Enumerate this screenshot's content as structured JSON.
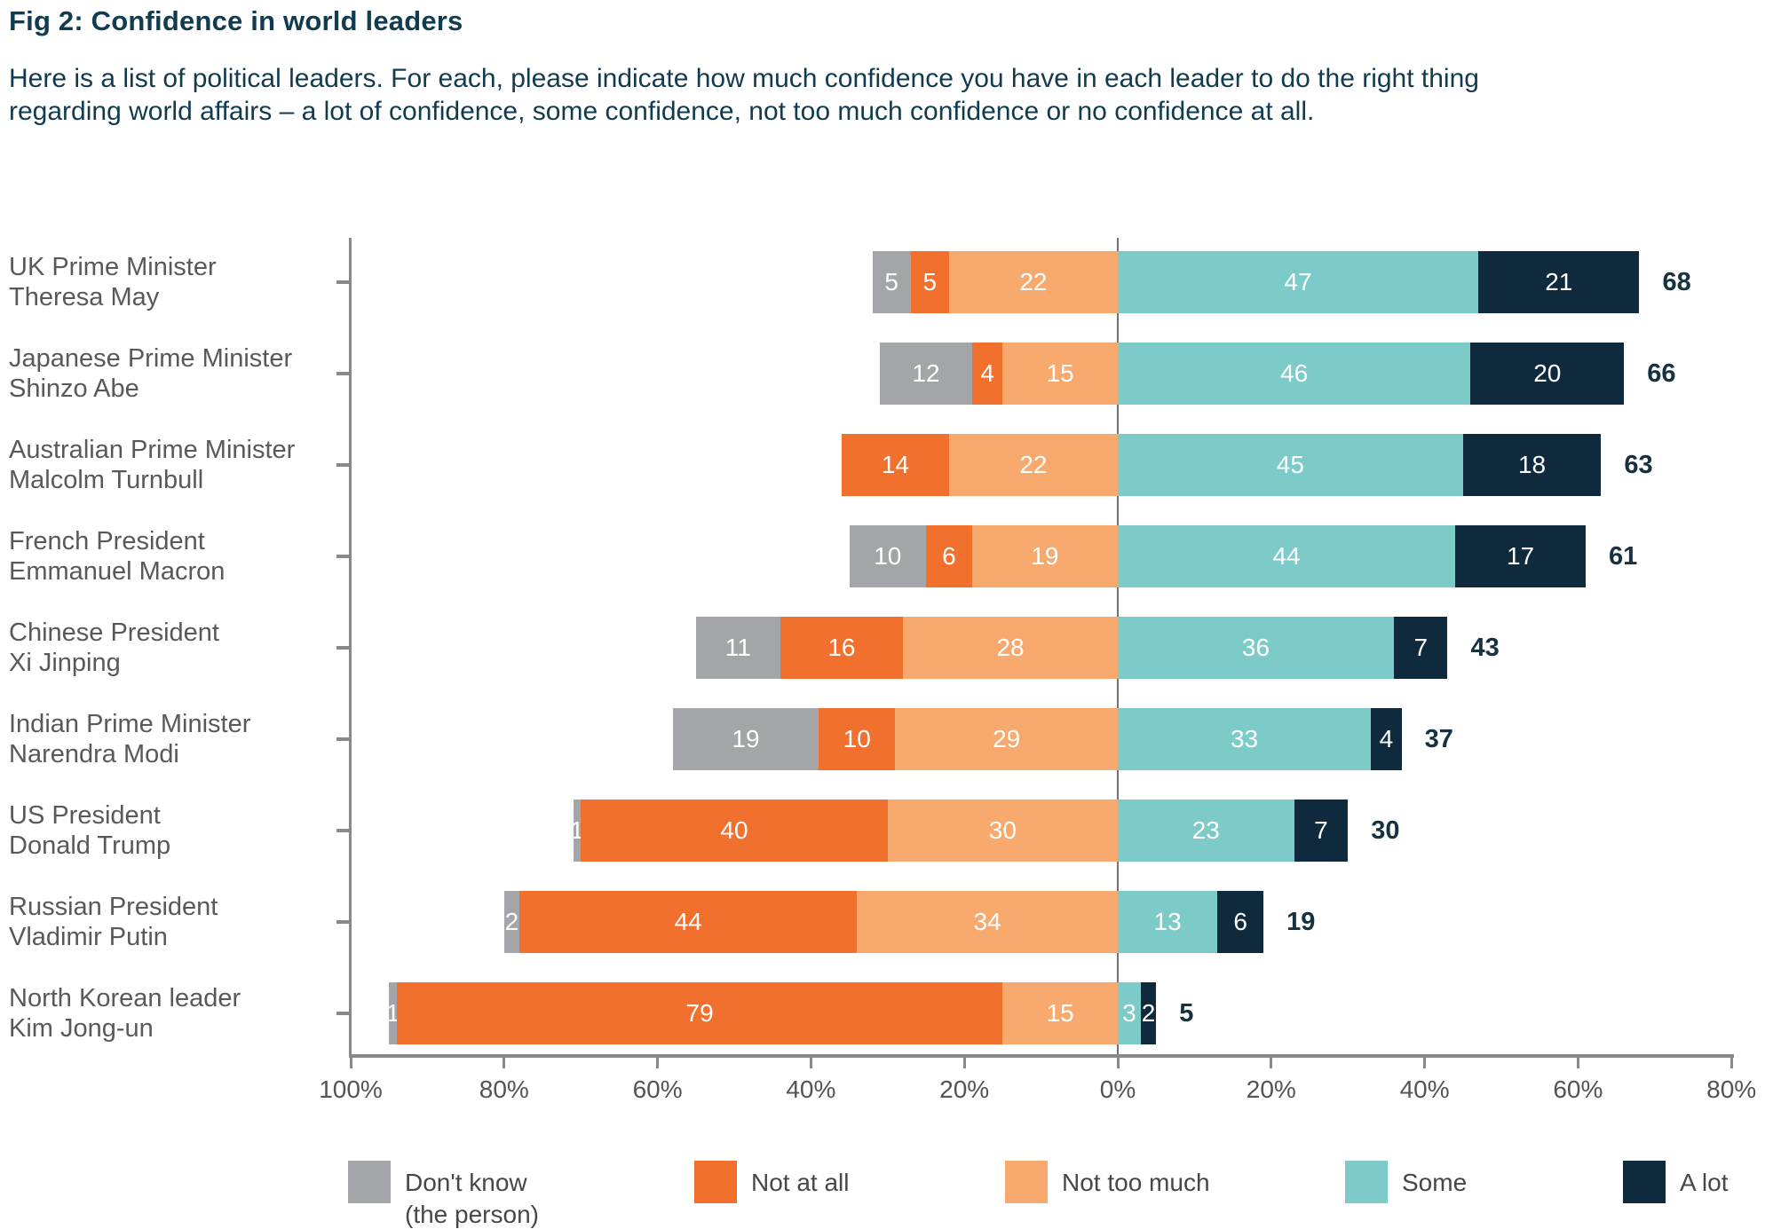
{
  "title": "Fig 2: Confidence in world leaders",
  "subtitle": "Here is a list of political leaders. For each, please indicate how much confidence you have in each leader to do the right thing regarding world affairs – a lot of confidence, some confidence, not too much confidence or no confidence at all.",
  "colors": {
    "dont_know_gray": "#A3A5A8",
    "not_at_all_orange": "#F1702E",
    "not_too_much_light_orange": "#F8A96D",
    "some_teal": "#7DCBC8",
    "a_lot_navy": "#0E2A3C",
    "title_text": "#113B4E",
    "category_text": "#58595B",
    "axis_gray": "#87898C",
    "zero_line_gray": "#6F7173",
    "tick_label_gray": "#525456",
    "total_text": "#16313F",
    "bar_value_text": "#FFFFFF"
  },
  "chart_data": {
    "type": "bar",
    "orientation": "horizontal",
    "diverging": true,
    "title": "Fig 2: Confidence in world leaders",
    "xlabel": "",
    "ylabel": "",
    "xlim": [
      -100,
      80
    ],
    "grid": false,
    "legend_position": "bottom",
    "categories": [
      [
        "UK Prime Minister",
        "Theresa May"
      ],
      [
        "Japanese Prime Minister",
        "Shinzo Abe"
      ],
      [
        "Australian Prime Minister",
        "Malcolm Turnbull"
      ],
      [
        "French President",
        "Emmanuel Macron"
      ],
      [
        "Chinese President",
        "Xi Jinping"
      ],
      [
        "Indian Prime Minister",
        "Narendra Modi"
      ],
      [
        "US President",
        "Donald Trump"
      ],
      [
        "Russian President",
        "Vladimir Putin"
      ],
      [
        "North Korean leader",
        "Kim Jong-un"
      ]
    ],
    "series": [
      {
        "name": "Don't know (the person)",
        "side": "left",
        "color": "#A3A5A8",
        "values": [
          5,
          12,
          0,
          10,
          11,
          19,
          1,
          2,
          1
        ]
      },
      {
        "name": "Not at all",
        "side": "left",
        "color": "#F1702E",
        "values": [
          5,
          4,
          14,
          6,
          16,
          10,
          40,
          44,
          79
        ]
      },
      {
        "name": "Not too much",
        "side": "left",
        "color": "#F8A96D",
        "values": [
          22,
          15,
          22,
          19,
          28,
          29,
          30,
          34,
          15
        ]
      },
      {
        "name": "Some",
        "side": "right",
        "color": "#7DCBC8",
        "values": [
          47,
          46,
          45,
          44,
          36,
          33,
          23,
          13,
          3
        ]
      },
      {
        "name": "A lot",
        "side": "right",
        "color": "#0E2A3C",
        "values": [
          21,
          20,
          18,
          17,
          7,
          4,
          7,
          6,
          2
        ]
      }
    ],
    "totals": [
      68,
      66,
      63,
      61,
      43,
      37,
      30,
      19,
      5
    ],
    "x_axis_ticks": [
      "100%",
      "80%",
      "60%",
      "40%",
      "20%",
      "0%",
      "20%",
      "40%",
      "60%",
      "80%"
    ]
  },
  "legend": {
    "items": [
      {
        "label": "Don't know",
        "label_line2": "(the person)",
        "color": "#A3A5A8"
      },
      {
        "label": "Not at all",
        "color": "#F1702E"
      },
      {
        "label": "Not too much",
        "color": "#F8A96D"
      },
      {
        "label": "Some",
        "color": "#7DCBC8"
      },
      {
        "label": "A lot",
        "color": "#0E2A3C"
      }
    ]
  }
}
